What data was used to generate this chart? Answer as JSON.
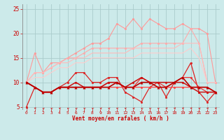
{
  "xlabel": "Vent moyen/en rafales ( km/h )",
  "bg_color": "#cceaea",
  "grid_color": "#aacccc",
  "ylim": [
    4.5,
    26
  ],
  "yticks": [
    5,
    10,
    15,
    20,
    25
  ],
  "xlim": [
    -0.5,
    23.5
  ],
  "x_ticks": [
    0,
    1,
    2,
    3,
    4,
    5,
    6,
    7,
    8,
    9,
    10,
    11,
    12,
    13,
    14,
    15,
    16,
    17,
    18,
    19,
    20,
    21,
    22,
    23
  ],
  "series": [
    {
      "color": "#ff9999",
      "lw": 0.8,
      "marker": "o",
      "ms": 2.0,
      "y": [
        10,
        16,
        12,
        14,
        14,
        15,
        16,
        17,
        18,
        18,
        19,
        22,
        21,
        23,
        21,
        23,
        22,
        21,
        21,
        22,
        21,
        21,
        20,
        10
      ]
    },
    {
      "color": "#ffaaaa",
      "lw": 0.8,
      "marker": "o",
      "ms": 2.0,
      "y": [
        10,
        12,
        12,
        13,
        14,
        15,
        15,
        16,
        17,
        17,
        17,
        17,
        17,
        17,
        18,
        18,
        18,
        18,
        18,
        18,
        21,
        18,
        10,
        10
      ]
    },
    {
      "color": "#ffbbbb",
      "lw": 0.8,
      "marker": null,
      "ms": 0,
      "y": [
        10,
        12,
        12,
        13,
        14,
        14,
        15,
        15,
        16,
        16,
        16,
        16,
        16,
        17,
        17,
        17,
        17,
        17,
        17,
        18,
        18,
        18,
        10,
        10
      ]
    },
    {
      "color": "#ffcccc",
      "lw": 0.8,
      "marker": null,
      "ms": 0,
      "y": [
        10,
        11,
        11,
        12,
        13,
        13,
        14,
        14,
        15,
        15,
        15,
        15,
        15,
        15,
        16,
        16,
        16,
        16,
        16,
        16,
        17,
        15,
        10,
        10
      ]
    },
    {
      "color": "#dd2222",
      "lw": 0.9,
      "marker": "o",
      "ms": 2.0,
      "y": [
        5,
        9,
        8,
        8,
        9,
        10,
        12,
        12,
        10,
        10,
        11,
        11,
        8,
        7,
        6,
        9,
        10,
        7,
        10,
        11,
        14,
        8,
        6,
        8
      ]
    },
    {
      "color": "#ee3333",
      "lw": 0.9,
      "marker": "o",
      "ms": 2.0,
      "y": [
        10,
        9,
        8,
        8,
        9,
        9,
        9,
        9,
        9,
        9,
        10,
        10,
        9,
        9,
        11,
        10,
        10,
        9,
        10,
        11,
        11,
        9,
        8,
        8
      ]
    },
    {
      "color": "#ff4444",
      "lw": 0.9,
      "marker": "o",
      "ms": 2.0,
      "y": [
        10,
        9,
        8,
        8,
        9,
        9,
        9,
        9,
        9,
        9,
        9,
        9,
        9,
        9,
        9,
        9,
        9,
        9,
        9,
        9,
        9,
        9,
        9,
        8
      ]
    },
    {
      "color": "#cc1111",
      "lw": 1.1,
      "marker": "o",
      "ms": 2.0,
      "y": [
        10,
        9,
        8,
        8,
        9,
        9,
        10,
        9,
        9,
        9,
        10,
        10,
        9,
        10,
        11,
        10,
        10,
        10,
        10,
        10,
        9,
        8,
        8,
        8
      ]
    },
    {
      "color": "#bb0000",
      "lw": 1.2,
      "marker": "^",
      "ms": 2.5,
      "y": [
        10,
        9,
        8,
        8,
        9,
        9,
        9,
        9,
        9,
        9,
        9,
        10,
        9,
        9,
        10,
        10,
        9,
        9,
        10,
        11,
        9,
        9,
        9,
        8
      ]
    }
  ],
  "arrow_angles": [
    270,
    270,
    225,
    225,
    247,
    225,
    225,
    225,
    225,
    247,
    247,
    247,
    247,
    247,
    225,
    225,
    225,
    270,
    270,
    270,
    270,
    247,
    270,
    270
  ]
}
